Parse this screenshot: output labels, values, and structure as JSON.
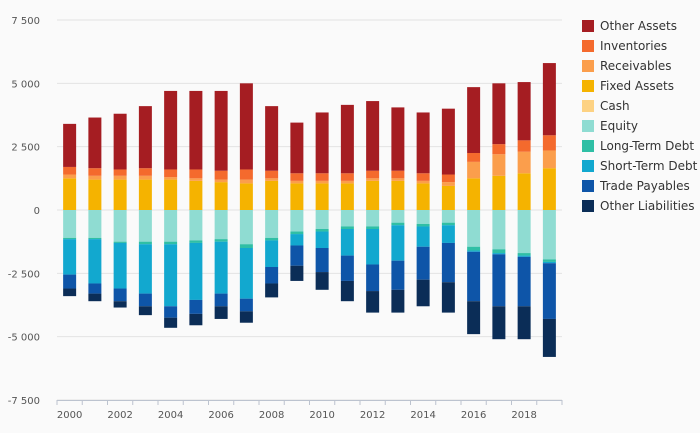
{
  "chart_data": {
    "type": "bar",
    "stacked": true,
    "title": "",
    "xlabel": "",
    "ylabel": "",
    "ylim": [
      -7500,
      7500
    ],
    "yticks": [
      7500,
      5000,
      2500,
      0,
      -2500,
      -5000,
      -7500
    ],
    "ytick_labels": [
      "7 500",
      "5 000",
      "2 500",
      "0",
      "-2 500",
      "-5 000",
      "-7 500"
    ],
    "xtick_labels": [
      "2000",
      "2002",
      "2004",
      "2006",
      "2008",
      "2010",
      "2012",
      "2014",
      "2016",
      "2018"
    ],
    "grid": "horizontal",
    "legend_position": "right",
    "categories": [
      2000,
      2001,
      2002,
      2003,
      2004,
      2005,
      2006,
      2007,
      2008,
      2009,
      2010,
      2011,
      2012,
      2013,
      2014,
      2015,
      2016,
      2017,
      2018,
      2019
    ],
    "series": [
      {
        "name": "Fixed Assets",
        "group": "assets",
        "color": "#f5b300",
        "values": [
          1250,
          1200,
          1200,
          1200,
          1200,
          1150,
          1100,
          1050,
          1150,
          1050,
          1050,
          1050,
          1150,
          1150,
          1050,
          950,
          1250,
          1350,
          1450,
          1650
        ]
      },
      {
        "name": "Cash",
        "group": "assets",
        "color": "#fdd283",
        "values": [
          0,
          0,
          0,
          0,
          0,
          0,
          0,
          0,
          0,
          0,
          0,
          0,
          0,
          0,
          0,
          0,
          0,
          0,
          0,
          0
        ]
      },
      {
        "name": "Receivables",
        "group": "assets",
        "color": "#fb9e4c",
        "values": [
          150,
          150,
          150,
          150,
          100,
          100,
          100,
          150,
          100,
          100,
          100,
          100,
          100,
          100,
          100,
          150,
          650,
          850,
          850,
          700
        ]
      },
      {
        "name": "Inventories",
        "group": "assets",
        "color": "#f46a2d",
        "values": [
          300,
          300,
          250,
          300,
          300,
          350,
          350,
          400,
          300,
          300,
          300,
          300,
          300,
          300,
          300,
          300,
          350,
          400,
          450,
          600
        ]
      },
      {
        "name": "Other Assets",
        "group": "assets",
        "color": "#a51d22",
        "values": [
          1700,
          2000,
          2200,
          2450,
          3100,
          3100,
          3150,
          3400,
          2550,
          2000,
          2400,
          2700,
          2750,
          2500,
          2400,
          2600,
          2600,
          2400,
          2300,
          2850
        ]
      },
      {
        "name": "Equity",
        "group": "liabilities",
        "color": "#8fdcd2",
        "values": [
          -1100,
          -1100,
          -1250,
          -1250,
          -1250,
          -1200,
          -1150,
          -1350,
          -1100,
          -850,
          -750,
          -650,
          -650,
          -500,
          -550,
          -500,
          -1450,
          -1550,
          -1700,
          -1950
        ]
      },
      {
        "name": "Long-Term Debt",
        "group": "liabilities",
        "color": "#2fbfa5",
        "values": [
          -50,
          -50,
          -50,
          -100,
          -100,
          -100,
          -100,
          -150,
          -100,
          -100,
          -100,
          -100,
          -100,
          -100,
          -100,
          -100,
          -150,
          -150,
          -100,
          -100
        ]
      },
      {
        "name": "Short-Term Debt",
        "group": "liabilities",
        "color": "#12a8cf",
        "values": [
          -1400,
          -1750,
          -1800,
          -1950,
          -2450,
          -2250,
          -2050,
          -2000,
          -1050,
          -450,
          -650,
          -1050,
          -1400,
          -1400,
          -800,
          -700,
          -50,
          -50,
          -50,
          -50
        ]
      },
      {
        "name": "Trade Payables",
        "group": "liabilities",
        "color": "#0e55a8",
        "values": [
          -550,
          -400,
          -500,
          -500,
          -450,
          -550,
          -500,
          -500,
          -650,
          -800,
          -950,
          -1000,
          -1050,
          -1150,
          -1300,
          -1550,
          -1950,
          -2050,
          -1950,
          -2200
        ]
      },
      {
        "name": "Other Liabilities",
        "group": "liabilities",
        "color": "#0b2d57",
        "values": [
          -300,
          -300,
          -250,
          -350,
          -400,
          -450,
          -500,
          -450,
          -550,
          -600,
          -700,
          -800,
          -850,
          -900,
          -1050,
          -1200,
          -1300,
          -1300,
          -1300,
          -1500
        ]
      }
    ],
    "legend": [
      {
        "label": "Other Assets",
        "color": "#a51d22"
      },
      {
        "label": "Inventories",
        "color": "#f46a2d"
      },
      {
        "label": "Receivables",
        "color": "#fb9e4c"
      },
      {
        "label": "Fixed Assets",
        "color": "#f5b300"
      },
      {
        "label": "Cash",
        "color": "#fdd283"
      },
      {
        "label": "Equity",
        "color": "#8fdcd2"
      },
      {
        "label": "Long-Term Debt",
        "color": "#2fbfa5"
      },
      {
        "label": "Short-Term Debt",
        "color": "#12a8cf"
      },
      {
        "label": "Trade Payables",
        "color": "#0e55a8"
      },
      {
        "label": "Other Liabilities",
        "color": "#0b2d57"
      }
    ]
  }
}
